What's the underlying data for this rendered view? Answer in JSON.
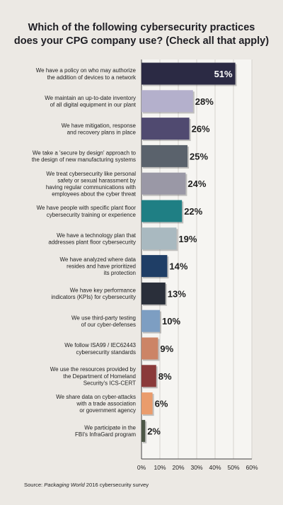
{
  "chart_data": {
    "type": "bar",
    "orientation": "horizontal",
    "title_lines": [
      "Which of the following cybersecurity practices",
      "does your CPG company use? (Check all that apply)"
    ],
    "categories": [
      [
        "We have a policy on who may authorize",
        "the addition of devices to a network"
      ],
      [
        "We maintain an up-to-date inventory",
        "of all digital equipment in our plant"
      ],
      [
        "We have mitigation, response",
        "and recovery plans in place"
      ],
      [
        "We take a 'secure by design' approach to",
        "the design of new manufacturing systems"
      ],
      [
        "We treat cybersecurity like personal",
        "safety or sexual harassment by",
        "having regular communications with",
        "employees about the cyber threat"
      ],
      [
        "We have people with specific plant floor",
        "cybersecurity training or experience"
      ],
      [
        "We have a technology plan that",
        "addresses plant floor cybersecurity"
      ],
      [
        "We have analyzed where data",
        "resides and have prioritized",
        "its protection"
      ],
      [
        "We have key performance",
        "indicators (KPIs) for cybersecurity"
      ],
      [
        "We use third-party testing",
        "of our cyber-defenses"
      ],
      [
        "We follow ISA99 / IEC62443",
        "cybersecurity standards"
      ],
      [
        "We use the resources provided by",
        "the Department of Homeland",
        "Security's ICS-CERT"
      ],
      [
        "We share data on cyber-attacks",
        "with a trade association",
        "or government agency"
      ],
      [
        "We participate in the",
        "FBI's InfraGard program"
      ]
    ],
    "values": [
      51,
      28,
      26,
      25,
      24,
      22,
      19,
      14,
      13,
      10,
      9,
      8,
      6,
      2
    ],
    "value_labels": [
      "51%",
      "28%",
      "26%",
      "25%",
      "24%",
      "22%",
      "19%",
      "14%",
      "13%",
      "10%",
      "9%",
      "8%",
      "6%",
      "2%"
    ],
    "bar_colors": [
      "#2b2a44",
      "#b4b0cc",
      "#504a70",
      "#5a626c",
      "#9a98a6",
      "#1f7f84",
      "#a9b9c0",
      "#1f3e66",
      "#2a2f3a",
      "#7d9ec2",
      "#cc8466",
      "#8a3a3a",
      "#ea9c6c",
      "#4c5646"
    ],
    "xlim": [
      0,
      60
    ],
    "x_ticks": [
      0,
      10,
      20,
      30,
      40,
      50,
      60
    ],
    "x_tick_labels": [
      "0%",
      "10%",
      "20%",
      "30%",
      "40%",
      "50%",
      "60%"
    ],
    "grid": true,
    "source": {
      "prefix": "Source: ",
      "italic": "Packaging World",
      "suffix": " 2016 cybersecurity survey"
    }
  }
}
